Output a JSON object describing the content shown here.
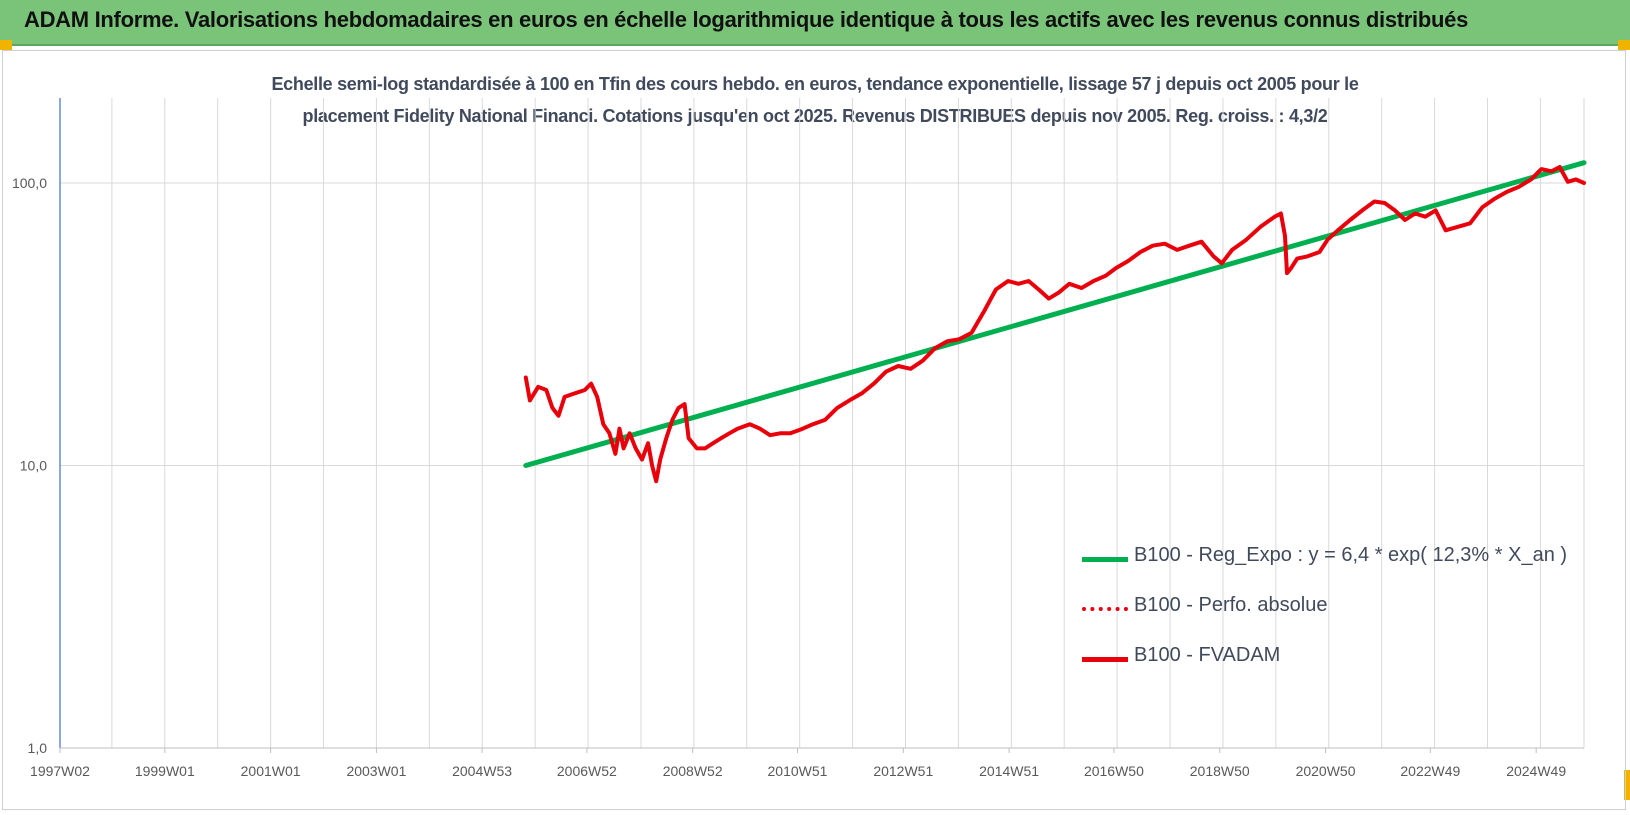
{
  "header": {
    "title": "ADAM Informe. Valorisations hebdomadaires en euros en échelle logarithmique identique à tous les actifs avec les revenus connus distribués"
  },
  "colors": {
    "banner": "#7ac47a",
    "trend": "#00b050",
    "fund": "#e8000b",
    "perf": "#e8000b",
    "axis": "#4472c4",
    "grid": "#d9d9d9"
  },
  "chart_data": {
    "type": "line",
    "title_line1": "Echelle semi-log standardisée à 100 en Tfin des cours hebdo. en euros, tendance exponentielle, lissage 57 j depuis oct 2005 pour le",
    "title_line2": "placement Fidelity National Financi. Cotations jusqu'en oct 2025. Revenus DISTRIBUES depuis nov 2005. Reg. croiss. : 4,3/2",
    "y_scale": "log",
    "ylim": [
      1,
      200
    ],
    "y_ticks": [
      "1,0",
      "10,0",
      "100,0"
    ],
    "xlim": [
      "1997W02",
      "2025W44"
    ],
    "x_ticks": [
      "1997W02",
      "1999W01",
      "2001W01",
      "2003W01",
      "2004W53",
      "2006W52",
      "2008W52",
      "2010W51",
      "2012W51",
      "2014W51",
      "2016W50",
      "2018W50",
      "2020W50",
      "2022W49",
      "2024W49"
    ],
    "grid": "vertical and horizontal",
    "legend_position": "bottom-right",
    "series": [
      {
        "name": "B100 - Reg_Expo : y = 6,4 * exp( 12,3% *  X_an )",
        "style": "solid",
        "color": "#00b050",
        "points": [
          [
            "2005W44",
            10.0
          ],
          [
            "2025W44",
            118.0
          ]
        ]
      },
      {
        "name": "B100 - Perfo. absolue",
        "style": "dotted",
        "color": "#e8000b",
        "points": []
      },
      {
        "name": "B100 - FVADAM",
        "style": "solid",
        "color": "#e8000b",
        "points": [
          [
            "2005W44",
            20.5
          ],
          [
            "2005W48",
            17.0
          ],
          [
            "2006W04",
            19.0
          ],
          [
            "2006W12",
            18.5
          ],
          [
            "2006W18",
            16.0
          ],
          [
            "2006W24",
            15.0
          ],
          [
            "2006W30",
            17.5
          ],
          [
            "2006W40",
            18.0
          ],
          [
            "2006W50",
            18.5
          ],
          [
            "2007W04",
            19.5
          ],
          [
            "2007W10",
            17.5
          ],
          [
            "2007W16",
            14.0
          ],
          [
            "2007W22",
            13.0
          ],
          [
            "2007W28",
            11.0
          ],
          [
            "2007W32",
            13.5
          ],
          [
            "2007W36",
            11.5
          ],
          [
            "2007W42",
            13.0
          ],
          [
            "2007W48",
            11.5
          ],
          [
            "2008W02",
            10.5
          ],
          [
            "2008W08",
            12.0
          ],
          [
            "2008W12",
            10.0
          ],
          [
            "2008W16",
            8.8
          ],
          [
            "2008W20",
            10.5
          ],
          [
            "2008W26",
            12.5
          ],
          [
            "2008W32",
            14.5
          ],
          [
            "2008W38",
            16.0
          ],
          [
            "2008W44",
            16.5
          ],
          [
            "2008W48",
            12.5
          ],
          [
            "2009W04",
            11.5
          ],
          [
            "2009W12",
            11.5
          ],
          [
            "2009W20",
            12.0
          ],
          [
            "2009W28",
            12.5
          ],
          [
            "2009W36",
            13.0
          ],
          [
            "2009W44",
            13.5
          ],
          [
            "2010W04",
            14.0
          ],
          [
            "2010W14",
            13.5
          ],
          [
            "2010W24",
            12.8
          ],
          [
            "2010W34",
            13.0
          ],
          [
            "2010W44",
            13.0
          ],
          [
            "2011W04",
            13.5
          ],
          [
            "2011W14",
            14.0
          ],
          [
            "2011W26",
            14.5
          ],
          [
            "2011W38",
            16.0
          ],
          [
            "2011W50",
            17.0
          ],
          [
            "2012W10",
            18.0
          ],
          [
            "2012W22",
            19.5
          ],
          [
            "2012W34",
            21.5
          ],
          [
            "2012W46",
            22.5
          ],
          [
            "2013W06",
            22.0
          ],
          [
            "2013W18",
            23.5
          ],
          [
            "2013W30",
            26.0
          ],
          [
            "2013W42",
            27.5
          ],
          [
            "2014W02",
            28.0
          ],
          [
            "2014W14",
            29.5
          ],
          [
            "2014W26",
            35.0
          ],
          [
            "2014W38",
            42.0
          ],
          [
            "2014W50",
            45.0
          ],
          [
            "2015W08",
            44.0
          ],
          [
            "2015W18",
            45.0
          ],
          [
            "2015W28",
            42.0
          ],
          [
            "2015W38",
            39.0
          ],
          [
            "2015W48",
            41.0
          ],
          [
            "2016W06",
            44.0
          ],
          [
            "2016W18",
            42.5
          ],
          [
            "2016W30",
            45.0
          ],
          [
            "2016W42",
            47.0
          ],
          [
            "2016W52",
            50.0
          ],
          [
            "2017W12",
            53.0
          ],
          [
            "2017W24",
            57.0
          ],
          [
            "2017W36",
            60.0
          ],
          [
            "2017W48",
            61.0
          ],
          [
            "2018W08",
            58.0
          ],
          [
            "2018W20",
            60.0
          ],
          [
            "2018W32",
            62.0
          ],
          [
            "2018W44",
            55.0
          ],
          [
            "2018W52",
            52.0
          ],
          [
            "2019W10",
            58.0
          ],
          [
            "2019W24",
            63.0
          ],
          [
            "2019W38",
            70.0
          ],
          [
            "2019W52",
            76.0
          ],
          [
            "2020W06",
            78.0
          ],
          [
            "2020W10",
            65.0
          ],
          [
            "2020W12",
            48.0
          ],
          [
            "2020W16",
            50.0
          ],
          [
            "2020W22",
            54.0
          ],
          [
            "2020W32",
            55.0
          ],
          [
            "2020W44",
            57.0
          ],
          [
            "2020W52",
            63.0
          ],
          [
            "2021W10",
            68.0
          ],
          [
            "2021W22",
            74.0
          ],
          [
            "2021W34",
            80.0
          ],
          [
            "2021W46",
            86.0
          ],
          [
            "2022W04",
            85.0
          ],
          [
            "2022W14",
            80.0
          ],
          [
            "2022W24",
            74.0
          ],
          [
            "2022W34",
            78.0
          ],
          [
            "2022W44",
            76.0
          ],
          [
            "2023W02",
            80.0
          ],
          [
            "2023W12",
            68.0
          ],
          [
            "2023W24",
            70.0
          ],
          [
            "2023W36",
            72.0
          ],
          [
            "2023W48",
            82.0
          ],
          [
            "2024W08",
            88.0
          ],
          [
            "2024W20",
            93.0
          ],
          [
            "2024W32",
            97.0
          ],
          [
            "2024W44",
            103.0
          ],
          [
            "2025W02",
            112.0
          ],
          [
            "2025W12",
            110.0
          ],
          [
            "2025W20",
            114.0
          ],
          [
            "2025W28",
            101.0
          ],
          [
            "2025W36",
            103.0
          ],
          [
            "2025W44",
            100.0
          ]
        ]
      }
    ]
  }
}
